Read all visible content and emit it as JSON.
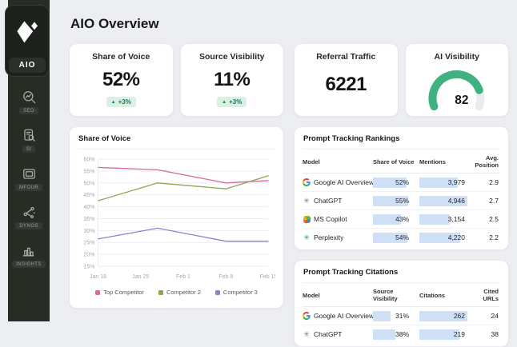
{
  "sidebar": {
    "logo_label": "AIO",
    "items": [
      {
        "label": "SEO"
      },
      {
        "label": "SI"
      },
      {
        "label": "MFour"
      },
      {
        "label": "Dynos"
      },
      {
        "label": "Insights"
      }
    ]
  },
  "header": {
    "title": "AIO Overview"
  },
  "stats": [
    {
      "title": "Share of Voice",
      "value": "52%",
      "delta": "+3%"
    },
    {
      "title": "Source Visibility",
      "value": "11%",
      "delta": "+3%"
    },
    {
      "title": "Referral Traffic",
      "value": "6221"
    },
    {
      "title": "AI Visibility",
      "value": "82",
      "gauge_percent": 82,
      "gauge_color": "#3fb27f",
      "gauge_track": "#e9ebee"
    }
  ],
  "chart_data": {
    "type": "line",
    "title": "Share of Voice",
    "x_ticks": [
      "Jan 18",
      "Jan 25",
      "Feb 1",
      "Feb 8",
      "Feb 15"
    ],
    "ylim": [
      15,
      60
    ],
    "y_ticks": [
      60,
      55,
      50,
      45,
      40,
      35,
      30,
      25,
      20,
      15
    ],
    "grid": true,
    "legend_position": "bottom",
    "series": [
      {
        "name": "Top Competitor",
        "color": "#d6699e",
        "points": [
          [
            0,
            56.5
          ],
          [
            0.35,
            55.5
          ],
          [
            0.75,
            50
          ],
          [
            1,
            51
          ]
        ]
      },
      {
        "name": "Competitor 2",
        "color": "#8aa84e",
        "points": [
          [
            0,
            42.5
          ],
          [
            0.35,
            50
          ],
          [
            0.75,
            47.5
          ],
          [
            1,
            53
          ]
        ]
      },
      {
        "name": "Competitor 3",
        "color": "#8d83c9",
        "points": [
          [
            0,
            26.5
          ],
          [
            0.35,
            31
          ],
          [
            0.75,
            25.5
          ],
          [
            1,
            25.5
          ]
        ]
      }
    ]
  },
  "tables": [
    {
      "title": "Prompt Tracking Rankings",
      "columns": [
        "Model",
        "Share of Voice",
        "Mentions",
        "Avg. Position"
      ],
      "rows": [
        {
          "model": "Google AI Overview",
          "icon": "google",
          "cells": [
            {
              "text": "52%",
              "bar": 87
            },
            {
              "text": "3,979",
              "bar": 80
            },
            {
              "text": "2.9"
            }
          ]
        },
        {
          "model": "ChatGPT",
          "icon": "chatgpt",
          "cells": [
            {
              "text": "55%",
              "bar": 92
            },
            {
              "text": "4,946",
              "bar": 100
            },
            {
              "text": "2.7"
            }
          ]
        },
        {
          "model": "MS Copilot",
          "icon": "copilot",
          "cells": [
            {
              "text": "43%",
              "bar": 72
            },
            {
              "text": "3,154",
              "bar": 64
            },
            {
              "text": "2.5"
            }
          ]
        },
        {
          "model": "Perplexity",
          "icon": "perplexity",
          "cells": [
            {
              "text": "54%",
              "bar": 90
            },
            {
              "text": "4,220",
              "bar": 85
            },
            {
              "text": "2.2"
            }
          ]
        }
      ]
    },
    {
      "title": "Prompt Tracking Citations",
      "columns": [
        "Model",
        "Source Visibility",
        "Citations",
        "Cited URLs"
      ],
      "rows": [
        {
          "model": "Google AI Overview",
          "icon": "google",
          "cells": [
            {
              "text": "31%",
              "bar": 45
            },
            {
              "text": "262",
              "bar": 100
            },
            {
              "text": "24"
            }
          ]
        },
        {
          "model": "ChatGPT",
          "icon": "chatgpt",
          "cells": [
            {
              "text": "38%",
              "bar": 58
            },
            {
              "text": "219",
              "bar": 84
            },
            {
              "text": "38"
            }
          ]
        }
      ]
    }
  ]
}
